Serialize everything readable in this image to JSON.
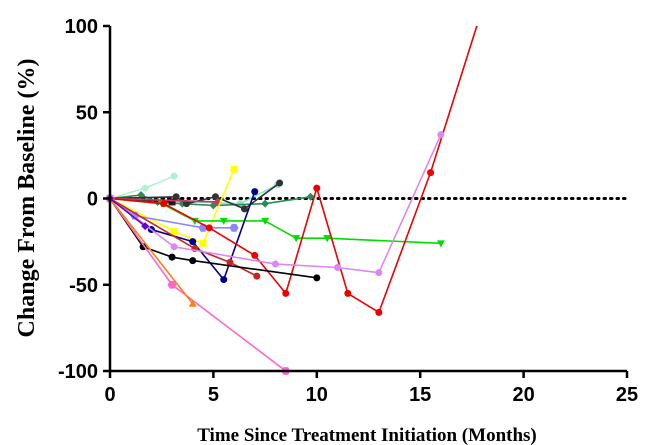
{
  "chart_data": {
    "type": "line",
    "title": "",
    "xlabel": "Time Since Treatment Initiation (Months)",
    "ylabel": "Change From Baseline (%)",
    "xlim": [
      0,
      25
    ],
    "ylim": [
      -100,
      100
    ],
    "xticks": [
      0,
      5,
      10,
      15,
      20,
      25
    ],
    "yticks": [
      -100,
      -50,
      0,
      50,
      100
    ],
    "xtick_labels": [
      "0",
      "5",
      "10",
      "15",
      "20",
      "25"
    ],
    "ytick_labels": [
      "-100",
      "-50",
      "0",
      "50",
      "100"
    ],
    "reference_line": {
      "y": 0,
      "style": "dotted"
    },
    "grid": false,
    "series": [
      {
        "color": "#b3f0d0",
        "marker": "circle",
        "points": [
          [
            0,
            0
          ],
          [
            1.7,
            6
          ],
          [
            3.1,
            13
          ]
        ]
      },
      {
        "color": "#88e8cc",
        "marker": "circle",
        "points": [
          [
            0,
            0
          ],
          [
            6.3,
            -3
          ],
          [
            8.1,
            8
          ]
        ]
      },
      {
        "color": "#2e8b57",
        "marker": "diamond",
        "points": [
          [
            0,
            0
          ],
          [
            1.5,
            2
          ],
          [
            2.3,
            -2
          ],
          [
            3.5,
            -3
          ],
          [
            5,
            -4
          ],
          [
            7.5,
            -3
          ],
          [
            9.7,
            1
          ]
        ]
      },
      {
        "color": "#333333",
        "marker": "circle",
        "points": [
          [
            0,
            0
          ],
          [
            3.2,
            1
          ],
          [
            3.7,
            -3
          ],
          [
            5.1,
            1
          ],
          [
            6.5,
            -6
          ],
          [
            8.2,
            9
          ]
        ]
      },
      {
        "color": "#1a1a1a",
        "marker": "square",
        "points": [
          [
            0,
            0
          ],
          [
            3,
            -2
          ]
        ]
      },
      {
        "color": "#cc3366",
        "marker": "diamond",
        "points": [
          [
            0,
            0
          ],
          [
            5.2,
            -2
          ]
        ]
      },
      {
        "color": "#ffff00",
        "marker": "square",
        "points": [
          [
            0,
            0
          ],
          [
            3.1,
            -19
          ],
          [
            4.5,
            -26
          ],
          [
            6,
            17
          ]
        ]
      },
      {
        "color": "#00dd00",
        "marker": "triangle-down",
        "points": [
          [
            0,
            0
          ],
          [
            2.5,
            -3
          ],
          [
            4.1,
            -13
          ],
          [
            5.5,
            -13
          ],
          [
            7.5,
            -13
          ],
          [
            9,
            -23
          ],
          [
            10.5,
            -23
          ],
          [
            16,
            -26
          ]
        ]
      },
      {
        "color": "#00008b",
        "marker": "circle",
        "points": [
          [
            0,
            0
          ],
          [
            2,
            -18
          ],
          [
            4,
            -25
          ],
          [
            5.5,
            -47
          ],
          [
            7,
            4
          ]
        ]
      },
      {
        "color": "#8888ff",
        "marker": "hexagon",
        "points": [
          [
            0,
            0
          ],
          [
            1.2,
            -10
          ],
          [
            4.5,
            -17
          ],
          [
            6,
            -17
          ]
        ]
      },
      {
        "color": "#ee0000",
        "marker": "circle",
        "points": [
          [
            0,
            0
          ],
          [
            2.6,
            -3
          ],
          [
            4.8,
            -17
          ],
          [
            7,
            -33
          ],
          [
            8.5,
            -55
          ],
          [
            10,
            6
          ],
          [
            11.5,
            -55
          ],
          [
            13,
            -66
          ],
          [
            15.5,
            15
          ],
          [
            18,
            110
          ]
        ]
      },
      {
        "color": "#cc2222",
        "marker": "circle",
        "points": [
          [
            0,
            0
          ],
          [
            4.1,
            -29
          ],
          [
            5.8,
            -37
          ],
          [
            7.1,
            -45
          ]
        ]
      },
      {
        "color": "#000000",
        "marker": "circle",
        "points": [
          [
            0,
            0
          ],
          [
            1.6,
            -28
          ],
          [
            3,
            -34
          ],
          [
            4,
            -36
          ],
          [
            10,
            -46
          ]
        ]
      },
      {
        "color": "#dd88ee",
        "marker": "circle",
        "points": [
          [
            0,
            0
          ],
          [
            3.1,
            -28
          ],
          [
            8,
            -38
          ],
          [
            11,
            -40
          ],
          [
            13,
            -43
          ],
          [
            16,
            37
          ]
        ]
      },
      {
        "color": "#ff66cc",
        "marker": "hexagon",
        "points": [
          [
            0,
            0
          ],
          [
            3,
            -50
          ],
          [
            8.5,
            -100
          ]
        ]
      },
      {
        "color": "#ff7f0e",
        "marker": "triangle-up",
        "points": [
          [
            0,
            0
          ],
          [
            4,
            -61
          ]
        ]
      },
      {
        "color": "#6600cc",
        "marker": "diamond",
        "points": [
          [
            0,
            0
          ],
          [
            1.7,
            -16
          ]
        ]
      }
    ]
  }
}
